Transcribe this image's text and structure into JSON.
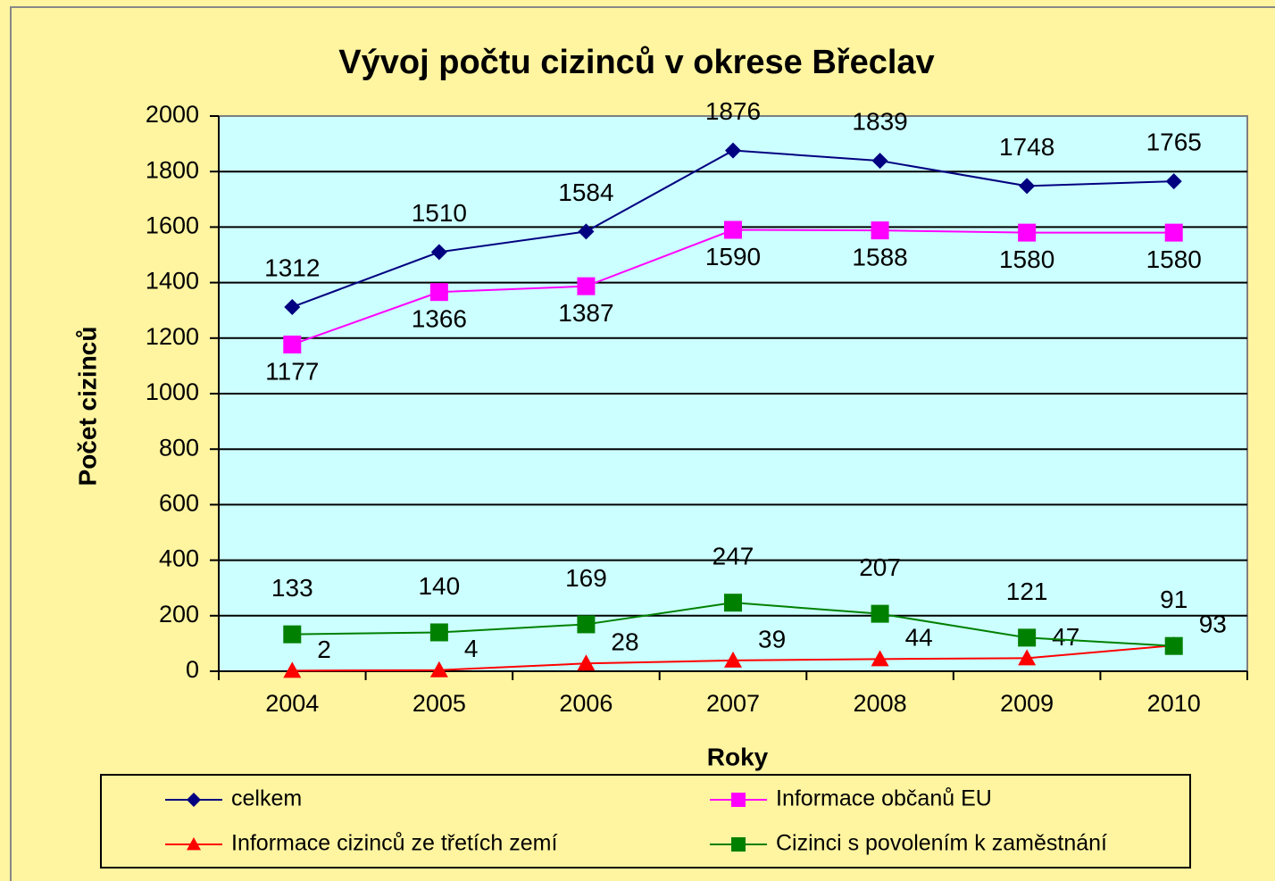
{
  "chart_data": {
    "type": "line",
    "title": "Vývoj počtu cizinců v okrese Břeclav",
    "x_label": "Roky",
    "y_label": "Počet cizinců",
    "categories": [
      "2004",
      "2005",
      "2006",
      "2007",
      "2008",
      "2009",
      "2010"
    ],
    "series": [
      {
        "name": "celkem",
        "color": "#000080",
        "marker": "diamond",
        "values": [
          1312,
          1510,
          1584,
          1876,
          1839,
          1748,
          1765
        ]
      },
      {
        "name": "Informace občanů EU",
        "color": "#ff00ff",
        "marker": "square",
        "values": [
          1177,
          1366,
          1387,
          1590,
          1588,
          1580,
          1580
        ]
      },
      {
        "name": "Informace cizinců ze třetích zemí",
        "color": "#ff0000",
        "marker": "triangle",
        "values": [
          2,
          4,
          28,
          39,
          44,
          47,
          93
        ]
      },
      {
        "name": "Cizinci s povolením k zaměstnání",
        "color": "#008000",
        "marker": "square",
        "values": [
          133,
          140,
          169,
          247,
          207,
          121,
          91
        ]
      }
    ],
    "ylim": [
      0,
      2000
    ],
    "yticks": [
      0,
      200,
      400,
      600,
      800,
      1000,
      1200,
      1400,
      1600,
      1800,
      2000
    ],
    "grid": true
  }
}
